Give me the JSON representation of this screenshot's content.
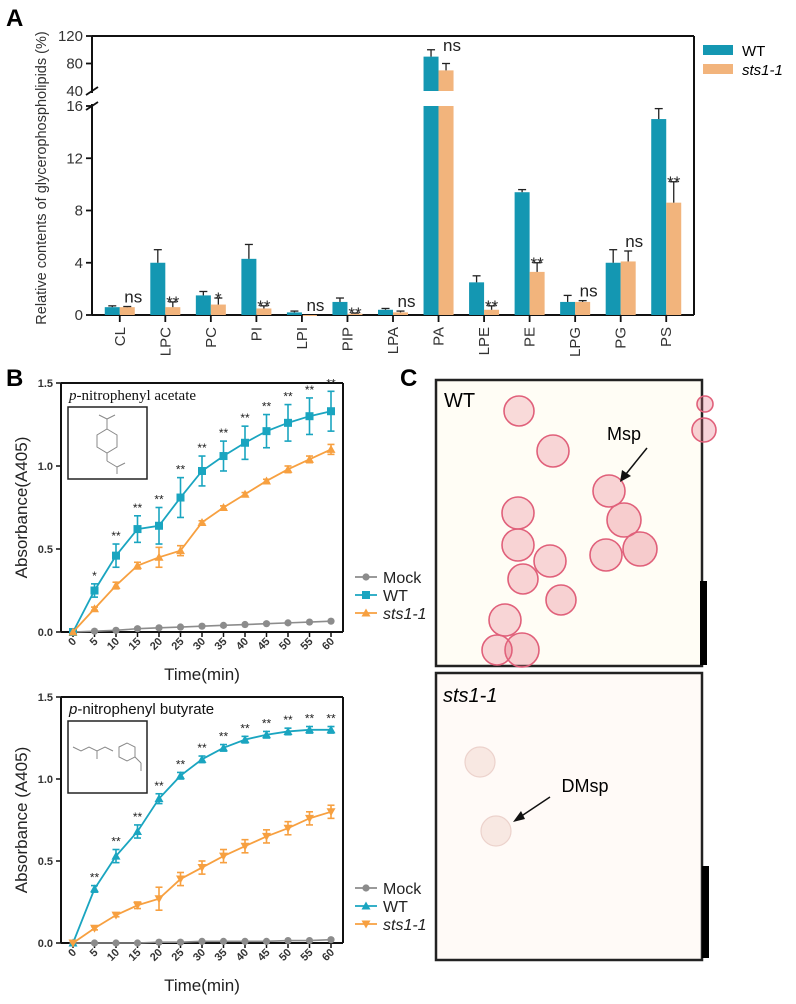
{
  "panel_labels": {
    "a": "A",
    "b": "B",
    "c": "C"
  },
  "colors": {
    "wt": "#1497b2",
    "sts": "#f2b47c",
    "sts_line": "#f7a040",
    "wt_line": "#1aa5c0",
    "mock": "#8c8c8c",
    "stain": "#e0607a"
  },
  "chart_data": [
    {
      "id": "A",
      "type": "bar",
      "title": "",
      "xlabel": "",
      "ylabel": "Relative contents of glycerophospholipids (%)",
      "categories": [
        "CL",
        "LPC",
        "PC",
        "PI",
        "LPI",
        "PIP",
        "LPA",
        "PA",
        "LPE",
        "PE",
        "LPG",
        "PG",
        "PS"
      ],
      "series": [
        {
          "name": "WT",
          "values": [
            0.6,
            4.0,
            1.5,
            4.3,
            0.2,
            1.0,
            0.4,
            90,
            2.5,
            9.4,
            1.0,
            4.0,
            15.0
          ],
          "errors": [
            0.1,
            1.0,
            0.3,
            1.1,
            0.1,
            0.3,
            0.1,
            10,
            0.5,
            0.2,
            0.5,
            1.0,
            0.8
          ]
        },
        {
          "name": "sts1-1",
          "values": [
            0.6,
            0.6,
            0.8,
            0.5,
            0.0,
            0.1,
            0.2,
            70,
            0.4,
            3.3,
            1.0,
            4.1,
            8.6
          ],
          "errors": [
            0.05,
            0.4,
            0.5,
            0.2,
            0.0,
            0.05,
            0.1,
            10,
            0.3,
            0.7,
            0.1,
            0.8,
            1.6
          ]
        }
      ],
      "significance": [
        "ns",
        "**",
        "*",
        "**",
        "ns",
        "**",
        "ns",
        "ns",
        "**",
        "**",
        "ns",
        "ns",
        "**"
      ],
      "y_ticks_lower": [
        "0",
        "4",
        "8",
        "12",
        "16"
      ],
      "y_ticks_upper": [
        "40",
        "80",
        "120"
      ],
      "ylim_lower": [
        0,
        16
      ],
      "ylim_upper": [
        40,
        120
      ],
      "axis_break": true,
      "grid": false,
      "legend": "top-right"
    },
    {
      "id": "B-top",
      "type": "line",
      "title": "p-nitrophenyl acetate",
      "title_prefix": "p",
      "title_rest": "-nitrophenyl acetate",
      "xlabel": "Time(min)",
      "ylabel": "Absorbance(A405)",
      "x": [
        0,
        5,
        10,
        15,
        20,
        25,
        30,
        35,
        40,
        45,
        50,
        55,
        60
      ],
      "x_ticks": [
        "0",
        "5",
        "10",
        "15",
        "20",
        "25",
        "30",
        "35",
        "40",
        "45",
        "50",
        "55",
        "60"
      ],
      "y_ticks": [
        "0.0",
        "0.5",
        "1.0",
        "1.5"
      ],
      "ylim": [
        0,
        1.5
      ],
      "series": [
        {
          "name": "Mock",
          "marker": "circle",
          "values": [
            0,
            0.005,
            0.01,
            0.02,
            0.025,
            0.03,
            0.035,
            0.04,
            0.045,
            0.05,
            0.055,
            0.06,
            0.065
          ],
          "errors": [
            0,
            0,
            0,
            0,
            0,
            0,
            0,
            0,
            0,
            0,
            0,
            0,
            0
          ]
        },
        {
          "name": "WT",
          "marker": "square",
          "values": [
            0,
            0.25,
            0.46,
            0.62,
            0.64,
            0.81,
            0.97,
            1.06,
            1.14,
            1.21,
            1.26,
            1.3,
            1.33
          ],
          "errors": [
            0,
            0.04,
            0.07,
            0.08,
            0.11,
            0.12,
            0.09,
            0.09,
            0.1,
            0.1,
            0.11,
            0.11,
            0.12
          ]
        },
        {
          "name": "sts1-1",
          "marker": "triangle",
          "values": [
            0,
            0.14,
            0.28,
            0.4,
            0.45,
            0.49,
            0.66,
            0.75,
            0.83,
            0.91,
            0.98,
            1.04,
            1.1
          ],
          "errors": [
            0,
            0.01,
            0.02,
            0.02,
            0.06,
            0.03,
            0.01,
            0.01,
            0.01,
            0.01,
            0.02,
            0.02,
            0.03
          ]
        }
      ],
      "significance": [
        "",
        "*",
        "**",
        "**",
        "**",
        "**",
        "**",
        "**",
        "**",
        "**",
        "**",
        "**",
        "**"
      ],
      "grid": false,
      "legend": "right"
    },
    {
      "id": "B-bottom",
      "type": "line",
      "title": "p-nitrophenyl butyrate",
      "title_prefix": "p",
      "title_rest": "-nitrophenyl butyrate",
      "xlabel": "Time(min)",
      "ylabel": "Absorbance (A405)",
      "x": [
        0,
        5,
        10,
        15,
        20,
        25,
        30,
        35,
        40,
        45,
        50,
        55,
        60
      ],
      "x_ticks": [
        "0",
        "5",
        "10",
        "15",
        "20",
        "25",
        "30",
        "35",
        "40",
        "45",
        "50",
        "55",
        "60"
      ],
      "y_ticks": [
        "0.0",
        "0.5",
        "1.0",
        "1.5"
      ],
      "ylim": [
        0,
        1.5
      ],
      "series": [
        {
          "name": "Mock",
          "marker": "circle",
          "values": [
            0,
            0,
            0,
            0,
            0.005,
            0.005,
            0.01,
            0.01,
            0.01,
            0.01,
            0.015,
            0.015,
            0.02
          ],
          "errors": [
            0,
            0,
            0,
            0,
            0,
            0,
            0,
            0,
            0,
            0,
            0,
            0,
            0
          ]
        },
        {
          "name": "WT",
          "marker": "triangle",
          "values": [
            0,
            0.33,
            0.53,
            0.68,
            0.88,
            1.02,
            1.12,
            1.19,
            1.24,
            1.27,
            1.29,
            1.3,
            1.3
          ],
          "errors": [
            0,
            0.02,
            0.04,
            0.04,
            0.03,
            0.02,
            0.02,
            0.02,
            0.02,
            0.02,
            0.02,
            0.02,
            0.02
          ]
        },
        {
          "name": "sts1-1",
          "marker": "triangle-down",
          "values": [
            0,
            0.09,
            0.17,
            0.23,
            0.27,
            0.39,
            0.46,
            0.53,
            0.59,
            0.65,
            0.7,
            0.76,
            0.8
          ],
          "errors": [
            0,
            0.01,
            0.01,
            0.02,
            0.07,
            0.04,
            0.04,
            0.04,
            0.04,
            0.04,
            0.04,
            0.04,
            0.04
          ]
        }
      ],
      "significance": [
        "",
        "**",
        "**",
        "**",
        "**",
        "**",
        "**",
        "**",
        "**",
        "**",
        "**",
        "**",
        "**"
      ],
      "grid": false,
      "legend": "right"
    }
  ],
  "panel_c": {
    "top_label": "WT",
    "top_annotation": "Msp",
    "bottom_label": "sts1-1",
    "bottom_annotation": "DMsp"
  }
}
